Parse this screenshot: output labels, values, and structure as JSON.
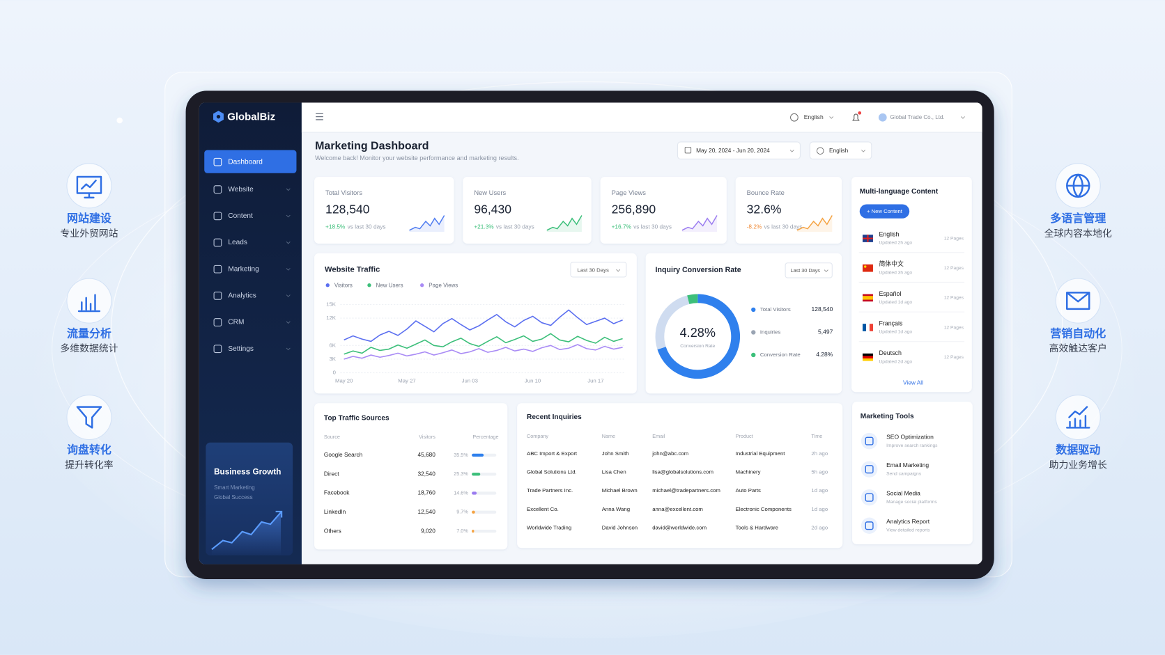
{
  "features": {
    "left": [
      {
        "title": "网站建设",
        "subtitle": "专业外贸网站"
      },
      {
        "title": "流量分析",
        "subtitle": "多维数据统计"
      },
      {
        "title": "询盘转化",
        "subtitle": "提升转化率"
      }
    ],
    "right": [
      {
        "title": "多语言管理",
        "subtitle": "全球内容本地化"
      },
      {
        "title": "营销自动化",
        "subtitle": "高效触达客户"
      },
      {
        "title": "数据驱动",
        "subtitle": "助力业务增长"
      }
    ]
  },
  "sidebar": {
    "brand": "GlobalBiz",
    "nav": [
      "Dashboard",
      "Website",
      "Content",
      "Leads",
      "Marketing",
      "Analytics",
      "CRM",
      "Settings"
    ],
    "promo": {
      "title": "Business Growth",
      "lines": [
        "Smart Marketing",
        "Global Success"
      ]
    }
  },
  "topbar": {
    "language": "English",
    "account": "Global Trade Co., Ltd."
  },
  "header": {
    "title": "Marketing Dashboard",
    "subtitle": "Welcome back! Monitor your website performance and marketing results.",
    "date_range": "May 20, 2024 - Jun 20, 2024",
    "language": "English"
  },
  "kpis": [
    {
      "label": "Total Visitors",
      "value": "128,540",
      "change": "+18.5%",
      "compare": "vs last 30 days"
    },
    {
      "label": "New Users",
      "value": "96,430",
      "change": "+21.3%",
      "compare": "vs last 30 days"
    },
    {
      "label": "Page Views",
      "value": "256,890",
      "change": "+16.7%",
      "compare": "vs last 30 days"
    },
    {
      "label": "Bounce Rate",
      "value": "32.6%",
      "change": "-8.2%",
      "compare": "vs last 30 days"
    }
  ],
  "chart_data": [
    {
      "type": "line",
      "title": "Website Traffic",
      "filter": "Last 30 Days",
      "categories": [
        "May 20",
        null,
        null,
        null,
        null,
        null,
        null,
        "May 27",
        null,
        null,
        null,
        null,
        null,
        null,
        "Jun 03",
        null,
        null,
        null,
        null,
        null,
        null,
        "Jun 10",
        null,
        null,
        null,
        null,
        null,
        null,
        "Jun 17",
        null,
        null,
        null
      ],
      "series": [
        {
          "name": "Visitors",
          "color": "#5b6ff0",
          "values": [
            7200,
            8100,
            7400,
            6900,
            8300,
            9100,
            8200,
            9600,
            11400,
            10200,
            9000,
            10800,
            11900,
            10600,
            9400,
            10300,
            11600,
            12800,
            11200,
            10100,
            11500,
            12400,
            11000,
            10400,
            12200,
            13800,
            12100,
            10600,
            11300,
            12000,
            10800,
            11600
          ]
        },
        {
          "name": "New Users",
          "color": "#3cbf7a",
          "values": [
            4100,
            4800,
            4300,
            5600,
            4900,
            5200,
            6100,
            5400,
            6300,
            7200,
            6000,
            5700,
            6800,
            7600,
            6400,
            5800,
            6900,
            7900,
            6600,
            7300,
            8100,
            6900,
            7400,
            8600,
            7200,
            6800,
            8000,
            7100,
            6500,
            7800,
            6900,
            7500
          ]
        },
        {
          "name": "Page Views",
          "color": "#a98bf5",
          "values": [
            3000,
            3600,
            3200,
            3900,
            3400,
            3800,
            4300,
            3700,
            4100,
            4600,
            3900,
            4400,
            5000,
            4200,
            4600,
            5300,
            4500,
            4900,
            5600,
            4800,
            5200,
            4700,
            5500,
            6000,
            5100,
            5400,
            6200,
            5300,
            5000,
            5800,
            5200,
            5600
          ]
        }
      ],
      "ylim": [
        0,
        15000
      ],
      "yticks": [
        0,
        {
          "value": 3000,
          "label": "3K"
        },
        {
          "value": 6000,
          "label": "6K"
        },
        {
          "value": 12000,
          "label": "12K"
        },
        {
          "value": 15000,
          "label": "15K"
        }
      ],
      "grid": true
    },
    {
      "type": "donut",
      "title": "Inquiry Conversion Rate",
      "filter": "Last 30 Days",
      "center_value": "4.28%",
      "center_label": "Conversion Rate",
      "categories": [
        "Total Visitors",
        "Inquiries",
        "Conversion Rate"
      ],
      "values": [
        70,
        26,
        4
      ],
      "colors": [
        "#2f80ed",
        "#cfdcf0",
        "#3cbf7a"
      ],
      "stats": [
        "128,540",
        "5,497",
        "4.28%"
      ]
    }
  ],
  "languages": {
    "title": "Multi-language Content",
    "button": "+ New Content",
    "items": [
      {
        "name": "English",
        "updated": "Updated 2h ago",
        "pages": "12 Pages"
      },
      {
        "name": "简体中文",
        "updated": "Updated 3h ago",
        "pages": "12 Pages"
      },
      {
        "name": "Español",
        "updated": "Updated 1d ago",
        "pages": "12 Pages"
      },
      {
        "name": "Français",
        "updated": "Updated 1d ago",
        "pages": "12 Pages"
      },
      {
        "name": "Deutsch",
        "updated": "Updated 2d ago",
        "pages": "12 Pages"
      }
    ],
    "link": "View All"
  },
  "sources": {
    "title": "Top Traffic Sources",
    "columns": [
      "Source",
      "Visitors",
      "Percentage"
    ],
    "names": [
      "Google Search",
      "Direct",
      "Facebook",
      "LinkedIn",
      "Others"
    ],
    "visitors": [
      "45,680",
      "32,540",
      "18,760",
      "12,540",
      "9,020"
    ],
    "values": [
      35.5,
      25.3,
      14.6,
      9.7,
      7.0
    ],
    "value_labels": [
      "35.5%",
      "25.3%",
      "14.6%",
      "9.7%",
      "7.0%"
    ],
    "colors": [
      "#2f80ed",
      "#3cbf7a",
      "#9b7cf0",
      "#f5a342",
      "#f5a342"
    ]
  },
  "inquiries": {
    "title": "Recent Inquiries",
    "columns": [
      "Company",
      "Name",
      "Email",
      "Product",
      "Time"
    ],
    "rows": [
      [
        "ABC Import & Export",
        "John Smith",
        "john@abc.com",
        "Industrial Equipment",
        "2h ago"
      ],
      [
        "Global Solutions Ltd.",
        "Lisa Chen",
        "lisa@globalsolutions.com",
        "Machinery",
        "5h ago"
      ],
      [
        "Trade Partners Inc.",
        "Michael Brown",
        "michael@tradepartners.com",
        "Auto Parts",
        "1d ago"
      ],
      [
        "Excellent Co.",
        "Anna Wang",
        "anna@excellent.com",
        "Electronic Components",
        "1d ago"
      ],
      [
        "Worldwide Trading",
        "David Johnson",
        "david@worldwide.com",
        "Tools & Hardware",
        "2d ago"
      ]
    ]
  },
  "tools": {
    "title": "Marketing Tools",
    "items": [
      {
        "title": "SEO Optimization",
        "desc": "Improve search rankings"
      },
      {
        "title": "Email Marketing",
        "desc": "Send campaigns"
      },
      {
        "title": "Social Media",
        "desc": "Manage social platforms"
      },
      {
        "title": "Analytics Report",
        "desc": "View detailed reports"
      }
    ]
  }
}
